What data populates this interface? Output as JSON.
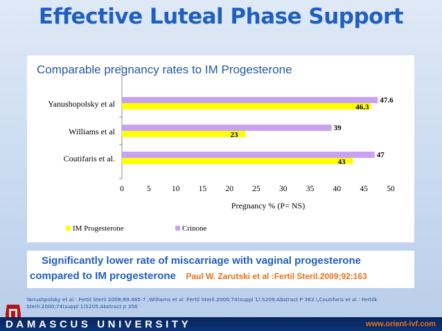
{
  "slide": {
    "title": "Effective Luteal Phase Support",
    "chart_subtitle": "Comparable pregnancy rates to IM Progesterone",
    "highlight_line1": "Significantly  lower rate of miscarriage with vaginal progesterone",
    "highlight_line2": "compared to  IM progesterone",
    "highlight_citation": "Paul W. Zarutski et al :Fertil Steril.2009;92:163",
    "references": "Yanushpolsky et al : Fertil Steril 2008;89:485-7 ,Williams et al :Fertil Steril.2000;74(suppl 1):S209.Abstract P 363 \\,Coutifaris et al : Fertilk Sterli.2000;74(suppl 1)S205.Abstract p 350",
    "footer_text": "DAMASCUS  UNIVERSITY",
    "footer_url": "www.orient-ivf.com",
    "logo_icon": "damascus-university-emblem-icon"
  },
  "colors": {
    "title": "#1f5fbf",
    "im_progesterone": "#ffff00",
    "crinone": "#c8a2f0",
    "citation": "#e8711a",
    "footer": "#0b3478"
  },
  "chart_data": {
    "type": "bar",
    "orientation": "horizontal",
    "title": "Comparable pregnancy rates to IM Progesterone",
    "categories": [
      "Yanushopolsky et al",
      "Williams et al",
      "Coutifaris et al."
    ],
    "series": [
      {
        "name": "IM Progesterone",
        "values": [
          46.3,
          23,
          43
        ],
        "labels": [
          "46.3",
          "23",
          "43"
        ]
      },
      {
        "name": "Crinone",
        "values": [
          47.6,
          39,
          47
        ],
        "labels": [
          "47.6",
          "39",
          "47"
        ]
      }
    ],
    "xlabel": "Pregnancy % (P= NS)",
    "ylabel": "",
    "xlim": [
      0,
      50
    ],
    "xticks": [
      "0",
      "5",
      "10",
      "15",
      "20",
      "25",
      "30",
      "35",
      "40",
      "45",
      "50"
    ],
    "legend_position": "bottom-left",
    "grid": false
  }
}
